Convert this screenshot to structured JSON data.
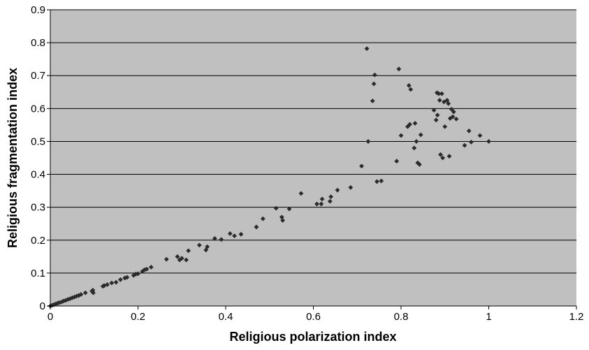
{
  "chart_data": {
    "type": "scatter",
    "title": "",
    "xlabel": "Religious polarization index",
    "ylabel": "Religious fragmentation index",
    "xlim": [
      0,
      1.2
    ],
    "ylim": [
      0,
      0.9
    ],
    "xticks": [
      0,
      0.2,
      0.4,
      0.6,
      0.8,
      1,
      1.2
    ],
    "xtick_labels": [
      "0",
      "0.2",
      "0.4",
      "0.6",
      "0.8",
      "1",
      "1.2"
    ],
    "yticks": [
      0,
      0.1,
      0.2,
      0.3,
      0.4,
      0.5,
      0.6,
      0.7,
      0.8,
      0.9
    ],
    "ytick_labels": [
      "0",
      "0.1",
      "0.2",
      "0.3",
      "0.4",
      "0.5",
      "0.6",
      "0.7",
      "0.8",
      "0.9"
    ],
    "grid": "horizontal",
    "legend": "none",
    "colors": {
      "plot_background": "#c0c0c0",
      "marker": "#2b2b2b",
      "gridline": "#000000"
    },
    "marker": "diamond",
    "points": [
      [
        0.0,
        0.0
      ],
      [
        0.004,
        0.002
      ],
      [
        0.008,
        0.004
      ],
      [
        0.012,
        0.006
      ],
      [
        0.016,
        0.008
      ],
      [
        0.02,
        0.01
      ],
      [
        0.025,
        0.012
      ],
      [
        0.03,
        0.015
      ],
      [
        0.035,
        0.017
      ],
      [
        0.04,
        0.02
      ],
      [
        0.045,
        0.022
      ],
      [
        0.05,
        0.025
      ],
      [
        0.055,
        0.027
      ],
      [
        0.06,
        0.03
      ],
      [
        0.065,
        0.032
      ],
      [
        0.07,
        0.035
      ],
      [
        0.08,
        0.04
      ],
      [
        0.095,
        0.045
      ],
      [
        0.097,
        0.048
      ],
      [
        0.098,
        0.04
      ],
      [
        0.12,
        0.06
      ],
      [
        0.123,
        0.062
      ],
      [
        0.13,
        0.065
      ],
      [
        0.14,
        0.07
      ],
      [
        0.15,
        0.072
      ],
      [
        0.16,
        0.08
      ],
      [
        0.17,
        0.085
      ],
      [
        0.175,
        0.087
      ],
      [
        0.19,
        0.093
      ],
      [
        0.195,
        0.097
      ],
      [
        0.2,
        0.098
      ],
      [
        0.21,
        0.105
      ],
      [
        0.215,
        0.11
      ],
      [
        0.22,
        0.112
      ],
      [
        0.23,
        0.118
      ],
      [
        0.265,
        0.142
      ],
      [
        0.29,
        0.15
      ],
      [
        0.295,
        0.14
      ],
      [
        0.3,
        0.145
      ],
      [
        0.31,
        0.14
      ],
      [
        0.315,
        0.168
      ],
      [
        0.34,
        0.185
      ],
      [
        0.355,
        0.17
      ],
      [
        0.358,
        0.18
      ],
      [
        0.375,
        0.205
      ],
      [
        0.39,
        0.202
      ],
      [
        0.41,
        0.22
      ],
      [
        0.42,
        0.213
      ],
      [
        0.435,
        0.218
      ],
      [
        0.47,
        0.24
      ],
      [
        0.485,
        0.265
      ],
      [
        0.515,
        0.297
      ],
      [
        0.528,
        0.27
      ],
      [
        0.53,
        0.26
      ],
      [
        0.545,
        0.295
      ],
      [
        0.572,
        0.342
      ],
      [
        0.608,
        0.31
      ],
      [
        0.618,
        0.31
      ],
      [
        0.62,
        0.325
      ],
      [
        0.638,
        0.318
      ],
      [
        0.64,
        0.332
      ],
      [
        0.655,
        0.352
      ],
      [
        0.685,
        0.36
      ],
      [
        0.71,
        0.425
      ],
      [
        0.722,
        0.782
      ],
      [
        0.725,
        0.5
      ],
      [
        0.735,
        0.623
      ],
      [
        0.738,
        0.675
      ],
      [
        0.74,
        0.702
      ],
      [
        0.745,
        0.378
      ],
      [
        0.755,
        0.38
      ],
      [
        0.79,
        0.44
      ],
      [
        0.795,
        0.72
      ],
      [
        0.8,
        0.518
      ],
      [
        0.815,
        0.545
      ],
      [
        0.818,
        0.67
      ],
      [
        0.82,
        0.552
      ],
      [
        0.822,
        0.658
      ],
      [
        0.83,
        0.48
      ],
      [
        0.832,
        0.555
      ],
      [
        0.835,
        0.5
      ],
      [
        0.838,
        0.435
      ],
      [
        0.842,
        0.43
      ],
      [
        0.845,
        0.52
      ],
      [
        0.875,
        0.595
      ],
      [
        0.88,
        0.565
      ],
      [
        0.882,
        0.648
      ],
      [
        0.883,
        0.58
      ],
      [
        0.886,
        0.645
      ],
      [
        0.888,
        0.625
      ],
      [
        0.89,
        0.46
      ],
      [
        0.893,
        0.645
      ],
      [
        0.895,
        0.45
      ],
      [
        0.898,
        0.62
      ],
      [
        0.9,
        0.545
      ],
      [
        0.905,
        0.625
      ],
      [
        0.908,
        0.615
      ],
      [
        0.91,
        0.455
      ],
      [
        0.912,
        0.57
      ],
      [
        0.915,
        0.598
      ],
      [
        0.918,
        0.575
      ],
      [
        0.92,
        0.59
      ],
      [
        0.926,
        0.568
      ],
      [
        0.945,
        0.488
      ],
      [
        0.955,
        0.532
      ],
      [
        0.96,
        0.498
      ],
      [
        0.98,
        0.518
      ],
      [
        1.0,
        0.5
      ]
    ]
  }
}
